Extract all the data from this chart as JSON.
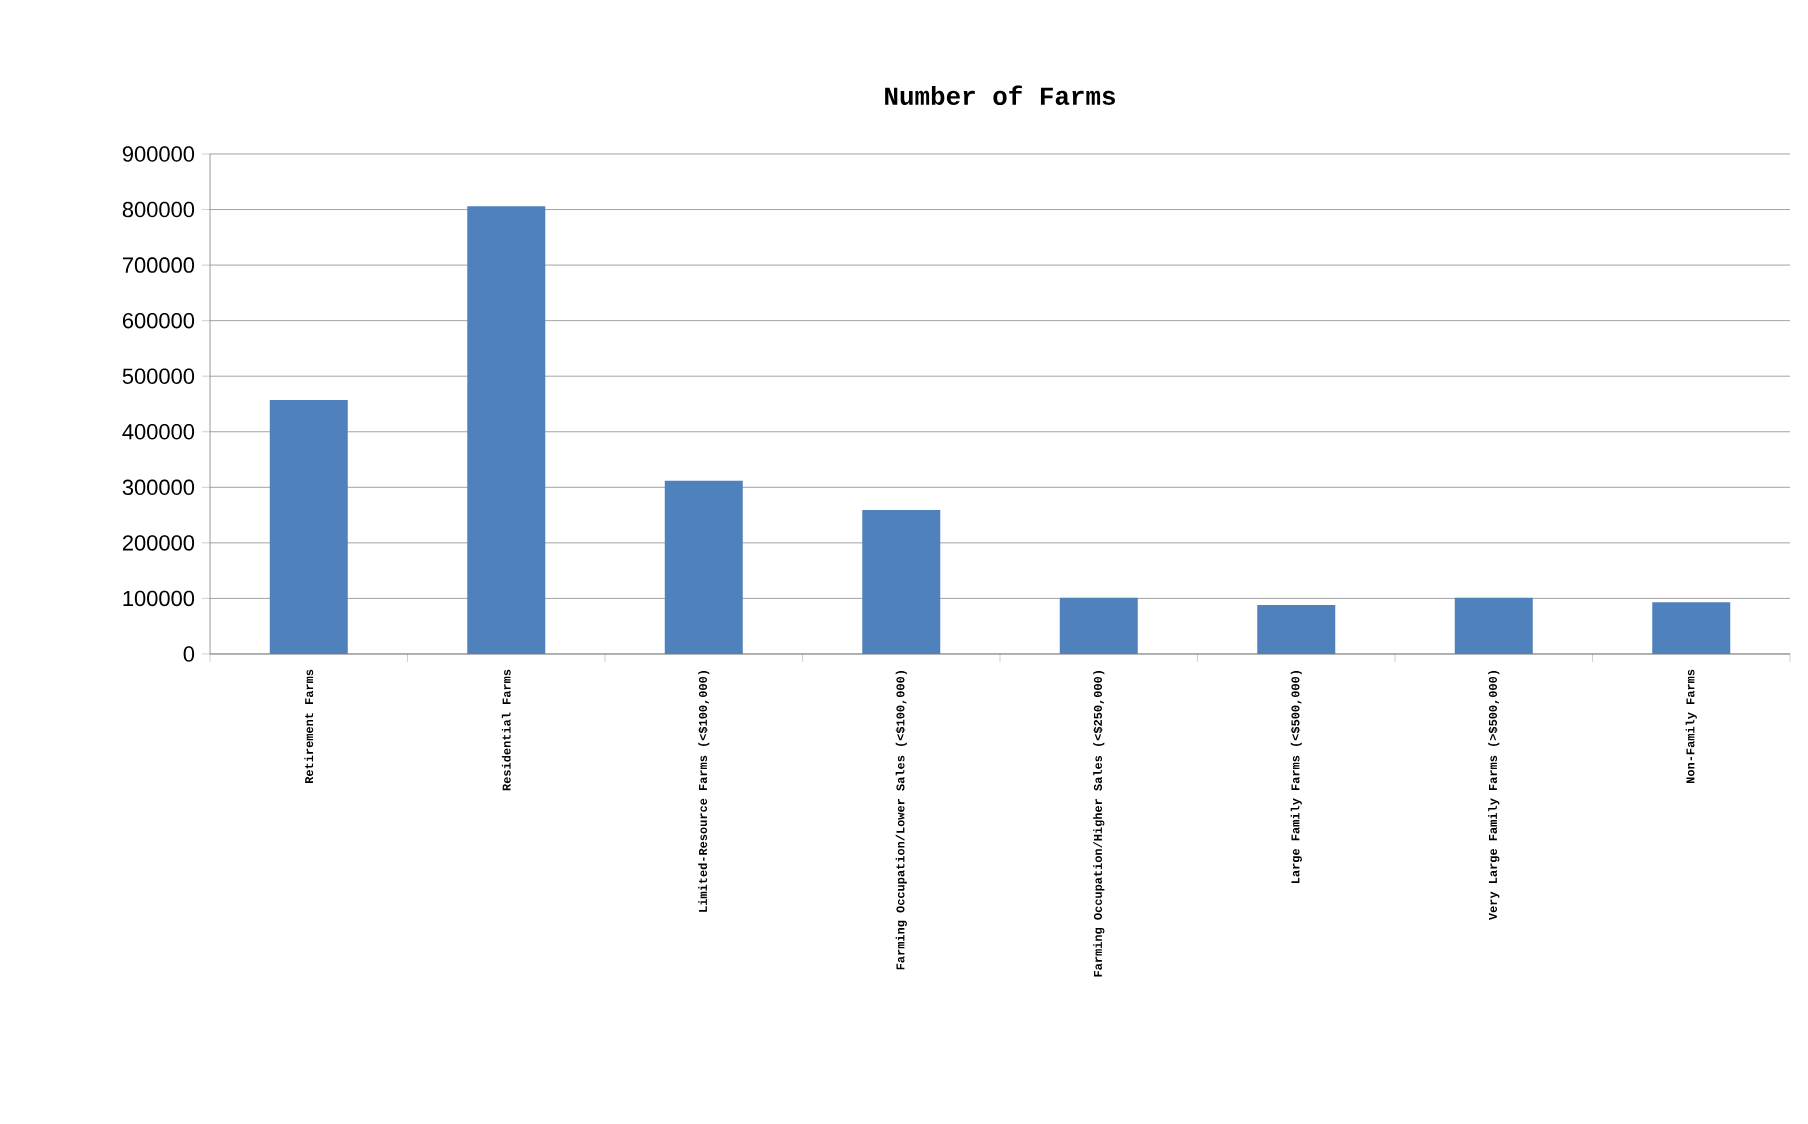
{
  "chart_data": {
    "type": "bar",
    "title": "Number of Farms",
    "categories": [
      "Retirement Farms",
      "Residential Farms",
      "Limited-Resource Farms (<$100,000)",
      "Farming Occupation/Lower Sales (<$100,000)",
      "Farming Occupation/Higher Sales (<$250,000)",
      "Large Family Farms (<$500,000)",
      "Very Large Family Farms (>$500,000)",
      "Non-Family Farms"
    ],
    "values": [
      457000,
      806000,
      312000,
      259000,
      101000,
      88000,
      101000,
      93000
    ],
    "color": "#4f81bd",
    "ylim": [
      0,
      900000
    ],
    "yticks": [
      0,
      100000,
      200000,
      300000,
      400000,
      500000,
      600000,
      700000,
      800000,
      900000
    ],
    "grid": "y"
  }
}
